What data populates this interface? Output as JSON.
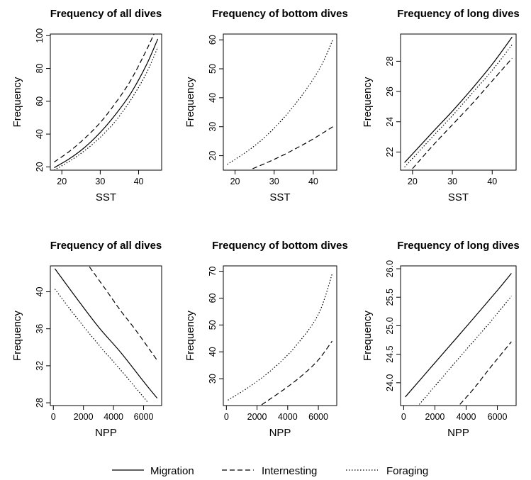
{
  "legend": {
    "position": "bottom",
    "items": [
      {
        "label": "Migration",
        "dash": "solid"
      },
      {
        "label": "Internesting",
        "dash": "dashed"
      },
      {
        "label": "Foraging",
        "dash": "dotted"
      }
    ]
  },
  "chart_data": [
    {
      "type": "line",
      "title": "Frequency of all dives",
      "xlabel": "SST",
      "ylabel": "Frequency",
      "xlim": [
        17,
        46
      ],
      "ylim": [
        18,
        101
      ],
      "xticks": [
        20,
        30,
        40
      ],
      "yticks": [
        20,
        40,
        60,
        80,
        100
      ],
      "ytick_labels": [
        "20",
        "40",
        "60",
        "80",
        "100"
      ],
      "series": [
        {
          "name": "Migration",
          "dash": "solid",
          "x": [
            18,
            22,
            26,
            30,
            34,
            38,
            42,
            45
          ],
          "y": [
            19.5,
            25,
            32,
            41,
            52,
            65,
            82,
            98
          ]
        },
        {
          "name": "Internesting",
          "dash": "dashed",
          "x": [
            18,
            22,
            26,
            30,
            34,
            38,
            42,
            44
          ],
          "y": [
            23,
            29.5,
            37.5,
            47,
            59,
            73,
            91,
            101
          ]
        },
        {
          "name": "Foraging",
          "dash": "dotted",
          "x": [
            18,
            22,
            26,
            30,
            34,
            38,
            42,
            45
          ],
          "y": [
            18,
            23.5,
            30,
            38,
            48,
            61,
            77,
            93
          ]
        }
      ]
    },
    {
      "type": "line",
      "title": "Frequency of bottom dives",
      "xlabel": "SST",
      "ylabel": "Frequency",
      "xlim": [
        17,
        46
      ],
      "ylim": [
        15,
        62
      ],
      "xticks": [
        20,
        30,
        40
      ],
      "yticks": [
        20,
        30,
        40,
        50,
        60
      ],
      "ytick_labels": [
        "20",
        "30",
        "40",
        "50",
        "60"
      ],
      "series": [
        {
          "name": "Internesting",
          "dash": "dashed",
          "x": [
            24.5,
            28,
            32,
            36,
            40,
            45
          ],
          "y": [
            15.5,
            17.5,
            20,
            22.8,
            25.8,
            30
          ]
        },
        {
          "name": "Foraging",
          "dash": "dotted",
          "x": [
            18,
            22,
            26,
            30,
            34,
            38,
            42,
            45
          ],
          "y": [
            17,
            20.5,
            24.5,
            29.5,
            35.5,
            42.5,
            51,
            60
          ]
        }
      ]
    },
    {
      "type": "line",
      "title": "Frequency of long dives",
      "xlabel": "SST",
      "ylabel": "Frequency",
      "xlim": [
        17,
        46
      ],
      "ylim": [
        20.8,
        29.8
      ],
      "xticks": [
        20,
        30,
        40
      ],
      "yticks": [
        22,
        24,
        26,
        28
      ],
      "ytick_labels": [
        "22",
        "24",
        "26",
        "28"
      ],
      "series": [
        {
          "name": "Migration",
          "dash": "solid",
          "x": [
            18,
            25,
            30,
            35,
            40,
            45
          ],
          "y": [
            21.3,
            23.3,
            24.7,
            26.2,
            27.8,
            29.6
          ]
        },
        {
          "name": "Internesting",
          "dash": "dashed",
          "x": [
            20,
            25,
            30,
            35,
            40,
            45
          ],
          "y": [
            20.9,
            22.4,
            23.8,
            25.2,
            26.7,
            28.2
          ]
        },
        {
          "name": "Foraging",
          "dash": "dotted",
          "x": [
            18,
            25,
            30,
            35,
            40,
            45
          ],
          "y": [
            21.0,
            23.0,
            24.4,
            25.9,
            27.4,
            29.1
          ]
        }
      ]
    },
    {
      "type": "line",
      "title": "Frequency of all dives",
      "xlabel": "NPP",
      "ylabel": "Frequency",
      "xlim": [
        -200,
        7200
      ],
      "ylim": [
        27.7,
        42.8
      ],
      "xticks": [
        0,
        2000,
        4000,
        6000
      ],
      "yticks": [
        28,
        32,
        36,
        40
      ],
      "ytick_labels": [
        "28",
        "32",
        "36",
        "40"
      ],
      "series": [
        {
          "name": "Migration",
          "dash": "solid",
          "x": [
            100,
            1500,
            3000,
            4500,
            6000,
            6900
          ],
          "y": [
            42.5,
            39.4,
            36.2,
            33.4,
            30.3,
            28.5
          ]
        },
        {
          "name": "Internesting",
          "dash": "dashed",
          "x": [
            2400,
            3500,
            4500,
            5500,
            6900
          ],
          "y": [
            42.7,
            40.2,
            37.9,
            35.8,
            32.6
          ]
        },
        {
          "name": "Foraging",
          "dash": "dotted",
          "x": [
            100,
            1500,
            3000,
            4500,
            6000,
            6300
          ],
          "y": [
            40.3,
            37.3,
            34.3,
            31.5,
            28.6,
            28.0
          ]
        }
      ]
    },
    {
      "type": "line",
      "title": "Frequency of bottom dives",
      "xlabel": "NPP",
      "ylabel": "Frequency",
      "xlim": [
        -200,
        7200
      ],
      "ylim": [
        20,
        72
      ],
      "xticks": [
        0,
        2000,
        4000,
        6000
      ],
      "yticks": [
        30,
        40,
        50,
        60,
        70
      ],
      "ytick_labels": [
        "30",
        "40",
        "50",
        "60",
        "70"
      ],
      "series": [
        {
          "name": "Internesting",
          "dash": "dashed",
          "x": [
            2300,
            3000,
            4000,
            5000,
            6000,
            6900
          ],
          "y": [
            20.3,
            23,
            27,
            31.5,
            37,
            44
          ]
        },
        {
          "name": "Foraging",
          "dash": "dotted",
          "x": [
            100,
            1500,
            3000,
            4500,
            6000,
            6900
          ],
          "y": [
            22,
            27,
            33.5,
            42,
            54,
            69
          ]
        }
      ]
    },
    {
      "type": "line",
      "title": "Frequency of long dives",
      "xlabel": "NPP",
      "ylabel": "Frequency",
      "xlim": [
        -200,
        7200
      ],
      "ylim": [
        23.6,
        26.05
      ],
      "xticks": [
        0,
        2000,
        4000,
        6000
      ],
      "yticks": [
        24.0,
        24.5,
        25.0,
        25.5,
        26.0
      ],
      "ytick_labels": [
        "24.0",
        "24.5",
        "25.0",
        "25.5",
        "26.0"
      ],
      "series": [
        {
          "name": "Migration",
          "dash": "solid",
          "x": [
            100,
            2000,
            4000,
            6000,
            6900
          ],
          "y": [
            23.75,
            24.35,
            24.98,
            25.62,
            25.92
          ]
        },
        {
          "name": "Internesting",
          "dash": "dashed",
          "x": [
            3600,
            4500,
            5500,
            6900
          ],
          "y": [
            23.62,
            23.9,
            24.25,
            24.72
          ]
        },
        {
          "name": "Foraging",
          "dash": "dotted",
          "x": [
            1000,
            2500,
            4000,
            5500,
            6900
          ],
          "y": [
            23.62,
            24.1,
            24.58,
            25.05,
            25.52
          ]
        }
      ]
    }
  ]
}
